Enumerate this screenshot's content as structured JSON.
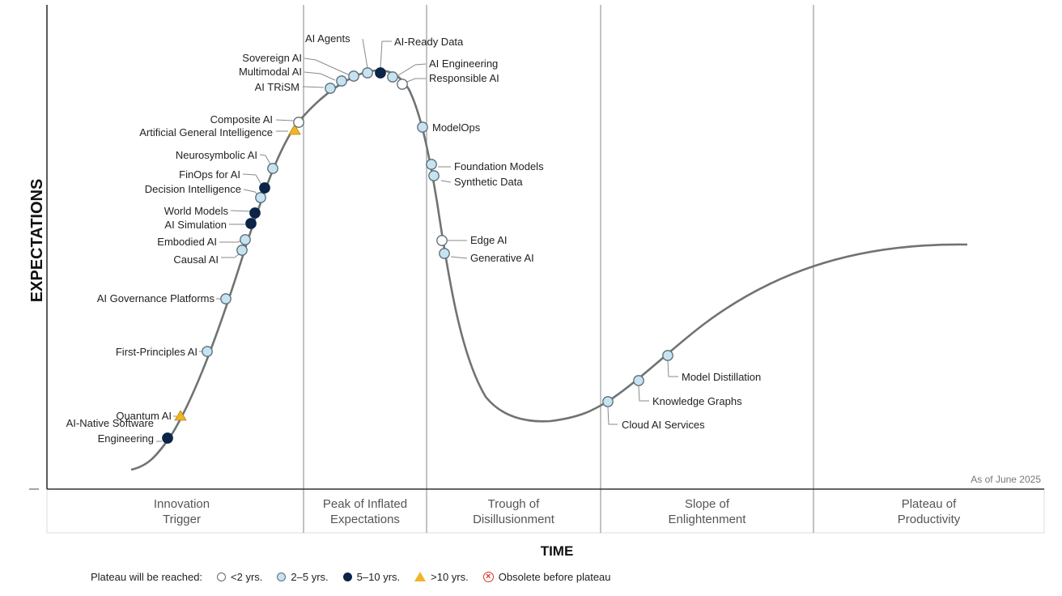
{
  "chart_data": {
    "type": "scatter",
    "y_axis_label": "EXPECTATIONS",
    "x_axis_label": "TIME",
    "as_of": "As of June 2025",
    "phases": [
      {
        "name": "Innovation Trigger",
        "lines": [
          "Innovation",
          "Trigger"
        ]
      },
      {
        "name": "Peak of Inflated Expectations",
        "lines": [
          "Peak of Inflated",
          "Expectations"
        ]
      },
      {
        "name": "Trough of Disillusionment",
        "lines": [
          "Trough of",
          "Disillusionment"
        ]
      },
      {
        "name": "Slope of Enlightenment",
        "lines": [
          "Slope of",
          "Enlightenment"
        ]
      },
      {
        "name": "Plateau of Productivity",
        "lines": [
          "Plateau of",
          "Productivity"
        ]
      }
    ],
    "legend": {
      "title": "Plateau will be reached:",
      "entries": [
        {
          "key": "lt2",
          "label": "<2 yrs."
        },
        {
          "key": "2to5",
          "label": "2–5 yrs."
        },
        {
          "key": "5to10",
          "label": "5–10 yrs."
        },
        {
          "key": "gt10",
          "label": ">10 yrs."
        },
        {
          "key": "obsolete",
          "label": "Obsolete before plateau"
        }
      ]
    },
    "marker_colors": {
      "lt2": "#ffffff",
      "2to5": "#c5e3f0",
      "5to10": "#0b2447",
      "gt10": "#f0b429",
      "obsolete": "#d9342b",
      "curve": "#6e7472"
    },
    "technologies": [
      {
        "name": "AI-Native Software Engineering",
        "lines": [
          "AI-Native Software",
          "Engineering"
        ],
        "category": "5to10"
      },
      {
        "name": "Quantum AI",
        "lines": [
          "Quantum AI"
        ],
        "category": "gt10"
      },
      {
        "name": "First-Principles AI",
        "lines": [
          "First-Principles AI"
        ],
        "category": "2to5"
      },
      {
        "name": "AI Governance Platforms",
        "lines": [
          "AI Governance Platforms"
        ],
        "category": "2to5"
      },
      {
        "name": "Causal AI",
        "lines": [
          "Causal AI"
        ],
        "category": "2to5"
      },
      {
        "name": "Embodied AI",
        "lines": [
          "Embodied AI"
        ],
        "category": "2to5"
      },
      {
        "name": "AI Simulation",
        "lines": [
          "AI Simulation"
        ],
        "category": "5to10"
      },
      {
        "name": "World Models",
        "lines": [
          "World Models"
        ],
        "category": "5to10"
      },
      {
        "name": "Decision Intelligence",
        "lines": [
          "Decision Intelligence"
        ],
        "category": "2to5"
      },
      {
        "name": "FinOps for AI",
        "lines": [
          "FinOps for AI"
        ],
        "category": "5to10"
      },
      {
        "name": "Neurosymbolic AI",
        "lines": [
          "Neurosymbolic AI"
        ],
        "category": "2to5"
      },
      {
        "name": "Artificial General Intelligence",
        "lines": [
          "Artificial General Intelligence"
        ],
        "category": "gt10"
      },
      {
        "name": "Composite AI",
        "lines": [
          "Composite AI"
        ],
        "category": "lt2"
      },
      {
        "name": "AI TRiSM",
        "lines": [
          "AI TRiSM"
        ],
        "category": "2to5"
      },
      {
        "name": "Multimodal AI",
        "lines": [
          "Multimodal AI"
        ],
        "category": "2to5"
      },
      {
        "name": "Sovereign AI",
        "lines": [
          "Sovereign AI"
        ],
        "category": "2to5"
      },
      {
        "name": "AI Agents",
        "lines": [
          "AI Agents"
        ],
        "category": "2to5"
      },
      {
        "name": "AI-Ready Data",
        "lines": [
          "AI-Ready Data"
        ],
        "category": "5to10"
      },
      {
        "name": "AI Engineering",
        "lines": [
          "AI Engineering"
        ],
        "category": "2to5"
      },
      {
        "name": "Responsible AI",
        "lines": [
          "Responsible AI"
        ],
        "category": "lt2"
      },
      {
        "name": "ModelOps",
        "lines": [
          "ModelOps"
        ],
        "category": "2to5"
      },
      {
        "name": "Foundation Models",
        "lines": [
          "Foundation Models"
        ],
        "category": "2to5"
      },
      {
        "name": "Synthetic Data",
        "lines": [
          "Synthetic Data"
        ],
        "category": "2to5"
      },
      {
        "name": "Edge AI",
        "lines": [
          "Edge AI"
        ],
        "category": "lt2"
      },
      {
        "name": "Generative AI",
        "lines": [
          "Generative AI"
        ],
        "category": "2to5"
      },
      {
        "name": "Cloud AI Services",
        "lines": [
          "Cloud AI Services"
        ],
        "category": "2to5"
      },
      {
        "name": "Knowledge Graphs",
        "lines": [
          "Knowledge Graphs"
        ],
        "category": "2to5"
      },
      {
        "name": "Model Distillation",
        "lines": [
          "Model Distillation"
        ],
        "category": "2to5"
      }
    ]
  }
}
